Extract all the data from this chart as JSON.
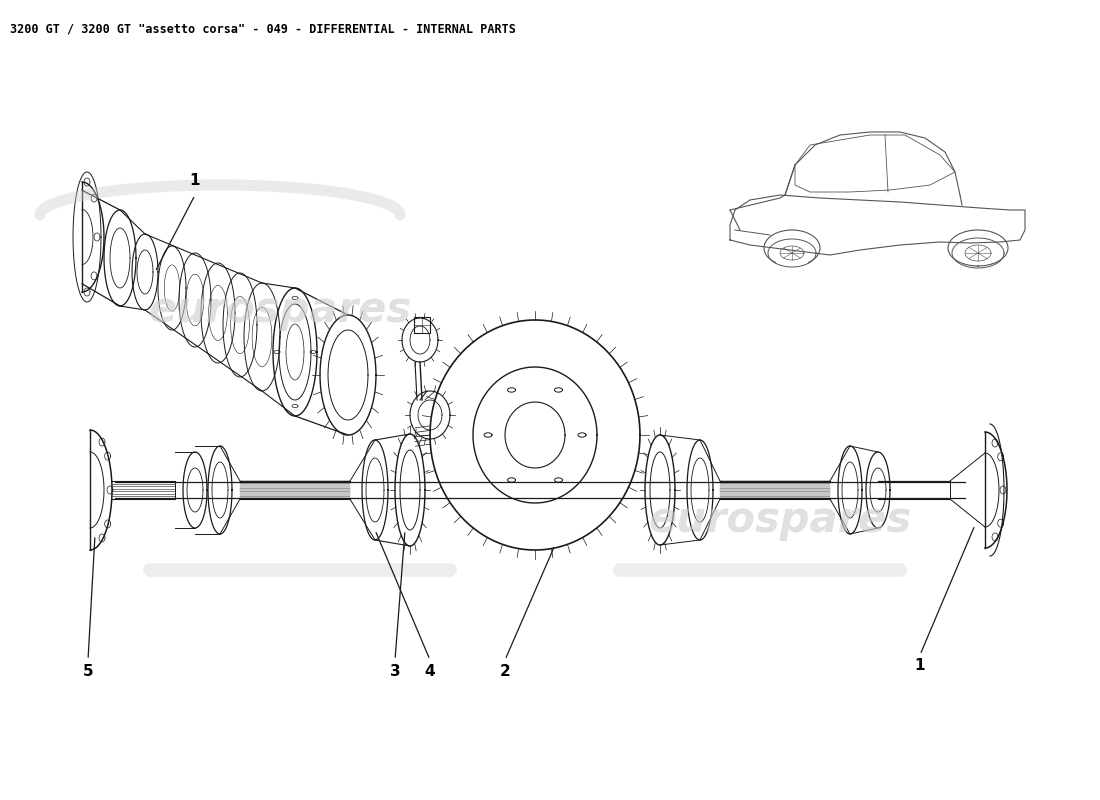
{
  "title": "3200 GT / 3200 GT \"assetto corsa\" - 049 - DIFFERENTIAL - INTERNAL PARTS",
  "title_fontsize": 8.5,
  "title_color": "#000000",
  "background_color": "#ffffff",
  "watermark_text": "eurospares",
  "watermark_color": "#cccccc",
  "line_color": "#1a1a1a",
  "fig_width": 11.0,
  "fig_height": 8.0,
  "dpi": 100
}
